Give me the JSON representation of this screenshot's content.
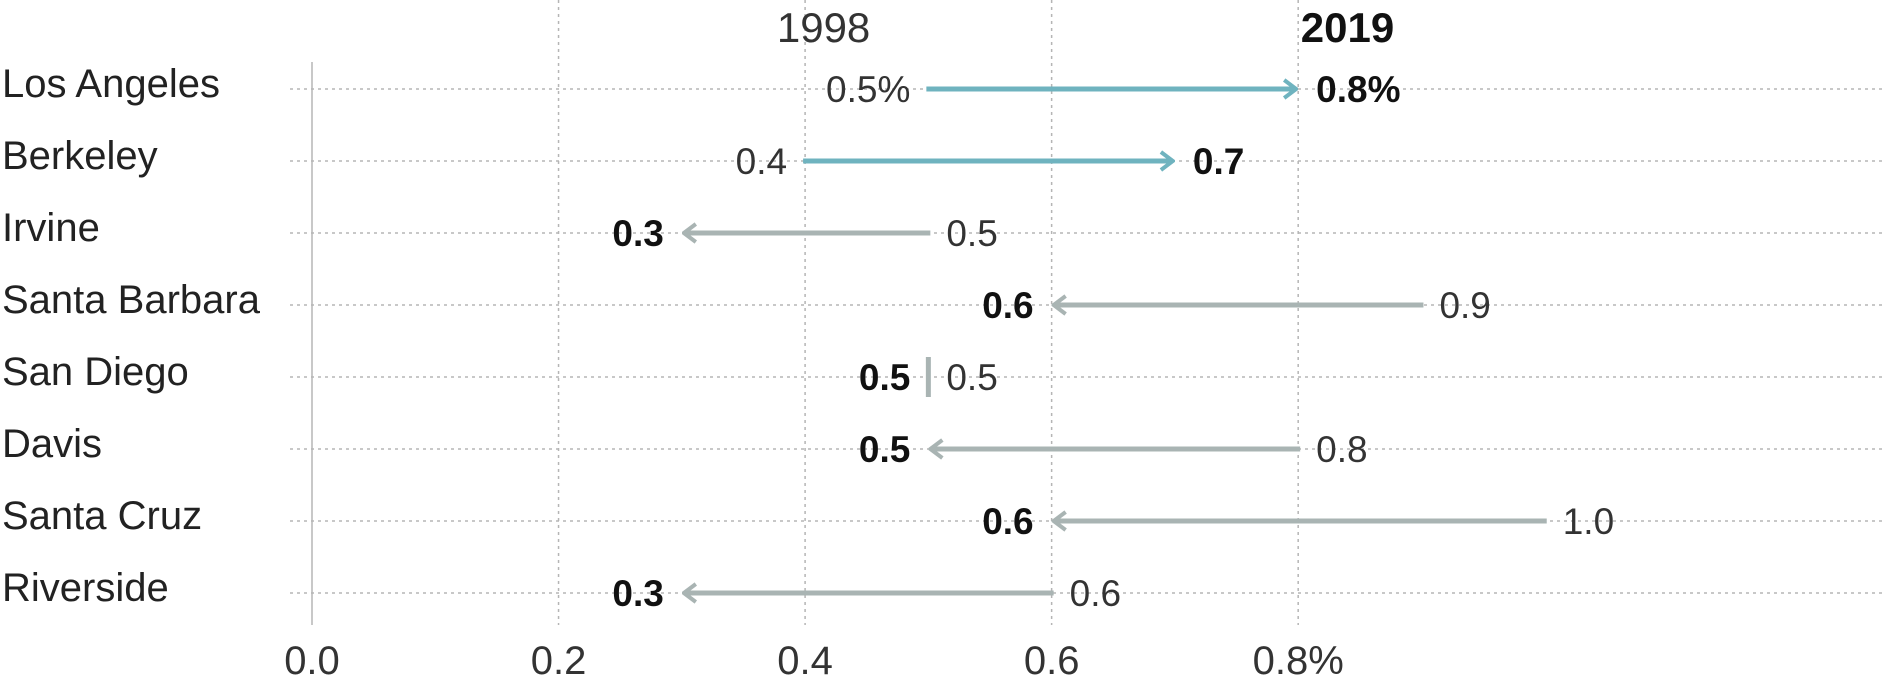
{
  "chart_data": {
    "type": "arrow-dumbbell",
    "column_headers": {
      "start": "1998",
      "end": "2019"
    },
    "categories": [
      "Los Angeles",
      "Berkeley",
      "Irvine",
      "Santa Barbara",
      "San Diego",
      "Davis",
      "Santa Cruz",
      "Riverside"
    ],
    "series": [
      {
        "name": "1998",
        "values": [
          0.5,
          0.4,
          0.5,
          0.9,
          0.5,
          0.8,
          1.0,
          0.6
        ]
      },
      {
        "name": "2019",
        "values": [
          0.8,
          0.7,
          0.3,
          0.6,
          0.5,
          0.5,
          0.6,
          0.3
        ]
      }
    ],
    "value_labels_1998": [
      "0.5%",
      "0.4",
      "0.5",
      "0.9",
      "0.5",
      "0.8",
      "1.0",
      "0.6"
    ],
    "value_labels_2019": [
      "0.8%",
      "0.7",
      "0.3",
      "0.6",
      "0.5",
      "0.5",
      "0.6",
      "0.3"
    ],
    "xlim": [
      0,
      1.05
    ],
    "xticks": [
      0,
      0.2,
      0.4,
      0.6,
      0.8
    ],
    "xtick_labels": [
      "0.0",
      "0.2",
      "0.4",
      "0.6",
      "0.8%"
    ],
    "grid": true,
    "colors": {
      "increase": "#6fb3bf",
      "decrease": "#a9b4b3"
    }
  }
}
